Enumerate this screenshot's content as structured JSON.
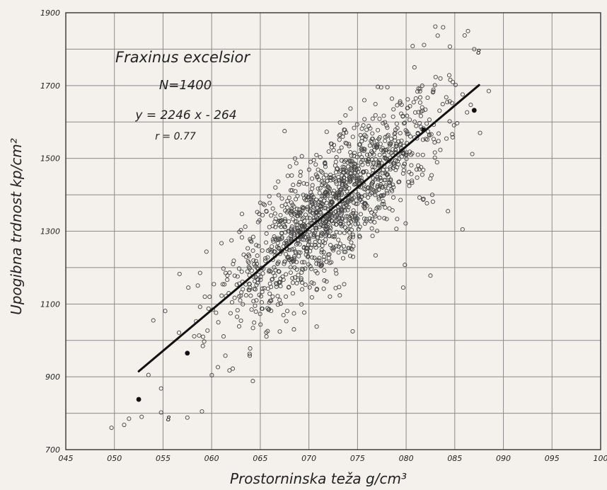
{
  "chart_data": {
    "type": "scatter",
    "xlabel": "Prostorninska teža g/cm³",
    "ylabel": "Upogibna trdnost kp/cm²",
    "xlim": [
      0.45,
      1.0
    ],
    "ylim": [
      700,
      1900
    ],
    "x_ticks": [
      "045",
      "050",
      "055",
      "060",
      "065",
      "070",
      "075",
      "080",
      "085",
      "090",
      "095",
      "100"
    ],
    "y_ticks": [
      "700",
      "900",
      "1100",
      "1300",
      "1500",
      "1700",
      "1900"
    ],
    "grid": true,
    "annotation": {
      "species": "Fraxinus excelsior",
      "n": "N=1400",
      "equation": "y = 2246 x - 264",
      "r": "r = 0.77"
    },
    "regression": {
      "slope": 2246,
      "intercept": -264,
      "x_start": 0.525,
      "x_end": 0.875
    },
    "cluster": {
      "count": 1400,
      "x_mean": 0.725,
      "x_sd": 0.055,
      "residual_sd": 88
    },
    "filled_points": [
      {
        "x": 0.525,
        "y": 838
      },
      {
        "x": 0.575,
        "y": 965
      },
      {
        "x": 0.818,
        "y": 1578
      },
      {
        "x": 0.87,
        "y": 1632
      }
    ],
    "outlier_points": [
      {
        "x": 0.497,
        "y": 760
      },
      {
        "x": 0.51,
        "y": 768
      },
      {
        "x": 0.515,
        "y": 785
      },
      {
        "x": 0.528,
        "y": 790
      },
      {
        "x": 0.548,
        "y": 802
      },
      {
        "x": 0.575,
        "y": 788
      },
      {
        "x": 0.59,
        "y": 805
      },
      {
        "x": 0.54,
        "y": 1055
      },
      {
        "x": 0.535,
        "y": 905
      },
      {
        "x": 0.548,
        "y": 868
      },
      {
        "x": 0.576,
        "y": 1145
      },
      {
        "x": 0.593,
        "y": 1120
      },
      {
        "x": 0.675,
        "y": 1575
      },
      {
        "x": 0.708,
        "y": 1038
      },
      {
        "x": 0.745,
        "y": 1025
      },
      {
        "x": 0.838,
        "y": 1860
      },
      {
        "x": 0.83,
        "y": 1862
      },
      {
        "x": 0.845,
        "y": 1807
      },
      {
        "x": 0.87,
        "y": 1800
      },
      {
        "x": 0.885,
        "y": 1685
      },
      {
        "x": 0.868,
        "y": 1512
      },
      {
        "x": 0.858,
        "y": 1305
      },
      {
        "x": 0.825,
        "y": 1178
      },
      {
        "x": 0.797,
        "y": 1145
      },
      {
        "x": 0.843,
        "y": 1355
      },
      {
        "x": 0.876,
        "y": 1570
      }
    ],
    "point_labels": [
      {
        "text": "8",
        "x": 0.553,
        "y": 778
      },
      {
        "text": "8",
        "x": 0.872,
        "y": 1785
      }
    ]
  }
}
